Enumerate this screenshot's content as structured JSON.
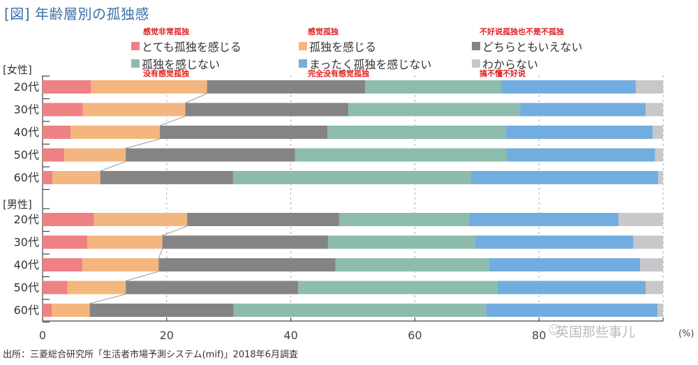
{
  "title": "[図] 年齢層別の孤独感",
  "footer": "出所：三菱総合研究所「生活者市場予測システム(mif)」2018年6月調査",
  "watermark": "英国那些事儿",
  "legend": [
    {
      "label": "とても孤独を感じる",
      "color": "#ee8184",
      "note": "感觉非常孤独"
    },
    {
      "label": "孤独を感じる",
      "color": "#f4b67f",
      "note": "感觉孤独"
    },
    {
      "label": "どちらともいえない",
      "color": "#868386",
      "note": "不好说孤独也不是不孤独"
    },
    {
      "label": "孤独を感じない",
      "color": "#8dbcad",
      "note": "没有感觉孤独"
    },
    {
      "label": "まったく孤独を感じない",
      "color": "#72ade0",
      "note": "完全没有感觉孤独"
    },
    {
      "label": "わからない",
      "color": "#c8c7c9",
      "note": "搞不懂不好说"
    }
  ],
  "chart_data": {
    "type": "bar",
    "orientation": "horizontal",
    "stacked": true,
    "title": "[図] 年齢層別の孤独感",
    "xlabel": "(%)",
    "ylabel": "",
    "xlim": [
      0,
      100
    ],
    "x_ticks": [
      "0",
      "20",
      "40",
      "60",
      "80",
      "100"
    ],
    "x_unit": "(%)",
    "grid": "vertical dashed",
    "legend_position": "top",
    "groups": [
      {
        "label": "[女性]",
        "categories": [
          "20代",
          "30代",
          "40代",
          "50代",
          "60代"
        ],
        "series": [
          {
            "name": "とても孤独を感じる",
            "values": [
              7.8,
              6.5,
              4.5,
              3.5,
              1.6
            ]
          },
          {
            "name": "孤独を感じる",
            "values": [
              18.7,
              16.5,
              14.4,
              9.9,
              7.7
            ]
          },
          {
            "name": "どちらともいえない",
            "values": [
              25.5,
              26.3,
              27.0,
              27.3,
              21.4
            ]
          },
          {
            "name": "孤独を感じない",
            "values": [
              21.9,
              27.7,
              28.8,
              34.1,
              38.3
            ]
          },
          {
            "name": "まったく孤独を感じない",
            "values": [
              21.7,
              20.2,
              23.6,
              23.9,
              30.2
            ]
          },
          {
            "name": "わからない",
            "values": [
              4.4,
              2.8,
              1.7,
              1.3,
              0.8
            ]
          }
        ]
      },
      {
        "label": "[男性]",
        "categories": [
          "20代",
          "30代",
          "40代",
          "50代",
          "60代"
        ],
        "series": [
          {
            "name": "とても孤独を感じる",
            "values": [
              8.3,
              7.2,
              6.4,
              4.0,
              1.5
            ]
          },
          {
            "name": "孤独を感じる",
            "values": [
              15.0,
              12.1,
              12.3,
              9.4,
              6.1
            ]
          },
          {
            "name": "どちらともいえない",
            "values": [
              24.5,
              26.7,
              28.5,
              27.8,
              23.2
            ]
          },
          {
            "name": "孤独を感じない",
            "values": [
              20.9,
              23.7,
              24.7,
              32.1,
              40.7
            ]
          },
          {
            "name": "まったく孤独を感じない",
            "values": [
              24.1,
              25.5,
              24.4,
              23.9,
              27.6
            ]
          },
          {
            "name": "わからない",
            "values": [
              7.2,
              4.8,
              3.7,
              2.8,
              0.9
            ]
          }
        ]
      }
    ]
  }
}
